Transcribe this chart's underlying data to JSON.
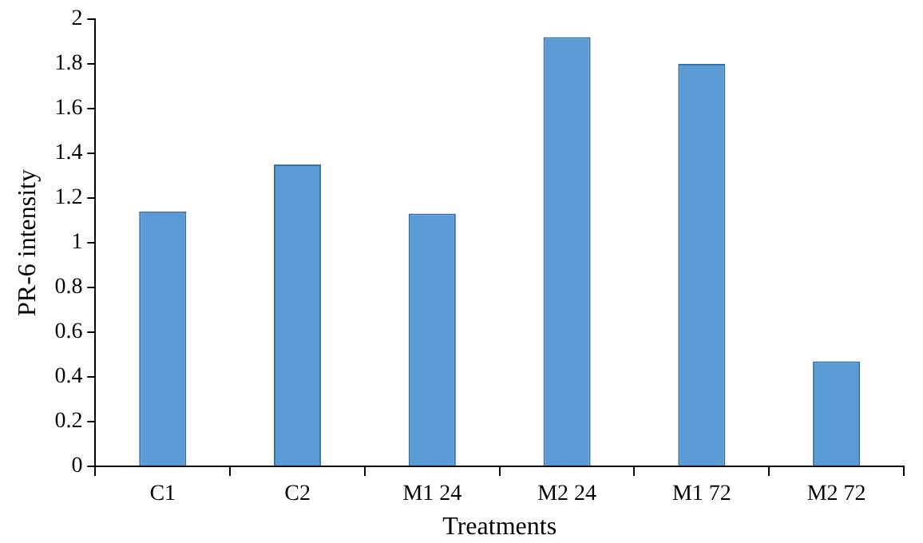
{
  "chart_data": {
    "type": "bar",
    "xlabel": "Treatments",
    "ylabel": "PR-6 intensity",
    "categories": [
      "C1",
      "C2",
      "M1 24",
      "M2 24",
      "M1 72",
      "M2 72"
    ],
    "values": [
      1.14,
      1.35,
      1.13,
      1.92,
      1.8,
      0.47
    ],
    "color": "#5b9bd5",
    "ylim": [
      0,
      2
    ],
    "yticks": [
      0,
      0.2,
      0.4,
      0.6,
      0.8,
      1,
      1.2,
      1.4,
      1.6,
      1.8,
      2
    ],
    "grid": false,
    "legend": false
  }
}
